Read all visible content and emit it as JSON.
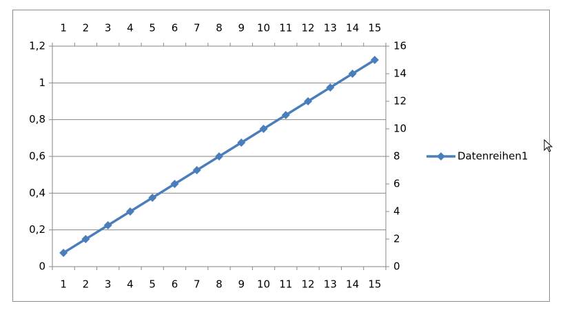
{
  "chart_data": {
    "type": "line",
    "categories": [
      1,
      2,
      3,
      4,
      5,
      6,
      7,
      8,
      9,
      10,
      11,
      12,
      13,
      14,
      15
    ],
    "series": [
      {
        "name": "Datenreihen1",
        "color": "#4a7ebb",
        "values": [
          1,
          2,
          3,
          4,
          5,
          6,
          7,
          8,
          9,
          10,
          11,
          12,
          13,
          14,
          15
        ],
        "axis": "y2"
      }
    ],
    "ylim": [
      0,
      1.2
    ],
    "yticks": [
      0,
      {
        "value": 0.2,
        "label": "0,2"
      },
      {
        "value": 0.4,
        "label": "0,4"
      },
      {
        "value": 0.6,
        "label": "0,6"
      },
      {
        "value": 0.8,
        "label": "0,8"
      },
      1,
      {
        "value": 1.2,
        "label": "1,2"
      }
    ],
    "y2lim": [
      0,
      16
    ],
    "y2ticks": [
      0,
      2,
      4,
      6,
      8,
      10,
      12,
      14,
      16
    ],
    "grid": true,
    "legend": "right"
  }
}
